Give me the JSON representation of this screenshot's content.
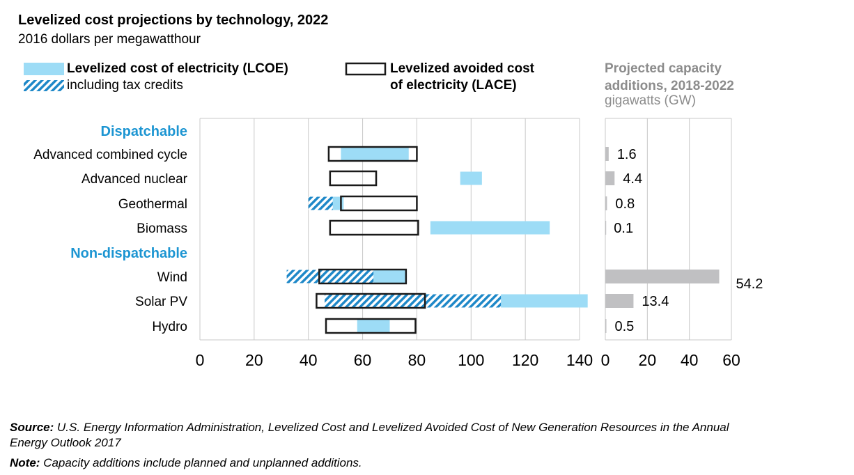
{
  "title": "Levelized cost projections by technology, 2022",
  "subtitle": "2016 dollars per megawatthour",
  "legend": {
    "lcoe": "Levelized cost of electricity (LCOE)",
    "tax": "including tax credits",
    "lace_line1": "Levelized avoided cost",
    "lace_line2": "of electricity (LACE)"
  },
  "capacity_panel": {
    "title_line1": "Projected capacity",
    "title_line2": "additions, 2018-2022",
    "unit": "gigawatts (GW)"
  },
  "footer": {
    "source_label": "Source:",
    "source_text": "U.S. Energy Information Administration, Levelized Cost and Levelized Avoided Cost of New Generation Resources in the Annual",
    "source_text2": "Energy Outlook 2017",
    "note_label": "Note:",
    "note_text": "Capacity additions include planned and unplanned additions."
  },
  "colors": {
    "lcoe": "#9ddcf6",
    "tax_hatch": "#1e88c8",
    "lace_border": "#1a1a1a",
    "capacity_bar": "#c0c0c2",
    "group_label": "#1c95d2",
    "grid": "#c8c8c8"
  },
  "chart_data": [
    {
      "type": "bar",
      "subtype": "range",
      "xlim": [
        0,
        140
      ],
      "xticks": [
        "0",
        "20",
        "40",
        "60",
        "80",
        "100",
        "120",
        "140"
      ],
      "grid": true,
      "groups": [
        {
          "label": "Dispatchable",
          "rows": [
            "Advanced combined cycle",
            "Advanced nuclear",
            "Geothermal",
            "Biomass"
          ]
        },
        {
          "label": "Non-dispatchable",
          "rows": [
            "Wind",
            "Solar PV",
            "Hydro"
          ]
        }
      ],
      "series": [
        {
          "name": "Levelized cost of electricity (LCOE)",
          "ranges": [
            {
              "category": "Advanced combined cycle",
              "min": 52,
              "max": 77
            },
            {
              "category": "Advanced nuclear",
              "min": 96,
              "max": 104
            },
            {
              "category": "Geothermal",
              "min": 48,
              "max": 53
            },
            {
              "category": "Biomass",
              "min": 85,
              "max": 129
            },
            {
              "category": "Wind",
              "min": 44,
              "max": 76
            },
            {
              "category": "Solar PV",
              "min": 46,
              "max": 143
            },
            {
              "category": "Hydro",
              "min": 58,
              "max": 70
            }
          ]
        },
        {
          "name": "including tax credits",
          "ranges": [
            {
              "category": "Geothermal",
              "min": 40,
              "max": 49
            },
            {
              "category": "Wind",
              "min": 32,
              "max": 64
            },
            {
              "category": "Solar PV",
              "min": 46,
              "max": 111
            }
          ]
        },
        {
          "name": "Levelized avoided cost of electricity (LACE)",
          "ranges": [
            {
              "category": "Advanced combined cycle",
              "min": 47.5,
              "max": 80
            },
            {
              "category": "Advanced nuclear",
              "min": 48,
              "max": 65
            },
            {
              "category": "Geothermal",
              "min": 52,
              "max": 80
            },
            {
              "category": "Biomass",
              "min": 48,
              "max": 80.5
            },
            {
              "category": "Wind",
              "min": 44,
              "max": 76
            },
            {
              "category": "Solar PV",
              "min": 43,
              "max": 83
            },
            {
              "category": "Hydro",
              "min": 46.5,
              "max": 79.5
            }
          ]
        }
      ]
    },
    {
      "type": "bar",
      "orientation": "horizontal",
      "xlim": [
        0,
        60
      ],
      "xticks": [
        "0",
        "20",
        "40",
        "60"
      ],
      "grid": true,
      "categories": [
        "Advanced combined cycle",
        "Advanced nuclear",
        "Geothermal",
        "Biomass",
        "Wind",
        "Solar PV",
        "Hydro"
      ],
      "values": [
        1.6,
        4.4,
        0.8,
        0.1,
        54.2,
        13.4,
        0.5
      ],
      "labels": [
        "1.6",
        "4.4",
        "0.8",
        "0.1",
        "54.2",
        "13.4",
        "0.5"
      ]
    }
  ]
}
